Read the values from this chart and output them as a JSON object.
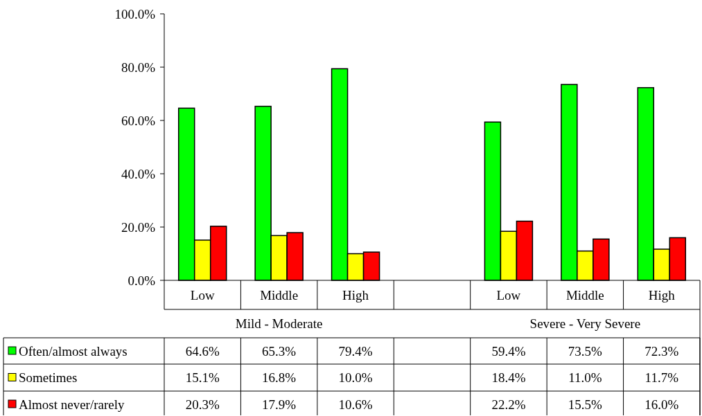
{
  "chart_data": {
    "type": "bar",
    "categories": [
      "Low",
      "Middle",
      "High",
      null,
      "Low",
      "Middle",
      "High"
    ],
    "annotations": [
      "Mild - Moderate",
      "Severe - Very Severe"
    ],
    "series": [
      {
        "name": "Often/almost always",
        "color": "#00ff00",
        "values": [
          64.6,
          65.3,
          79.4,
          null,
          59.4,
          73.5,
          72.3
        ],
        "value_labels": [
          "64.6%",
          "65.3%",
          "79.4%",
          null,
          "59.4%",
          "73.5%",
          "72.3%"
        ]
      },
      {
        "name": "Sometimes",
        "color": "#ffff00",
        "values": [
          15.1,
          16.8,
          10.0,
          null,
          18.4,
          11.0,
          11.7
        ],
        "value_labels": [
          "15.1%",
          "16.8%",
          "10.0%",
          null,
          "18.4%",
          "11.0%",
          "11.7%"
        ]
      },
      {
        "name": "Almost never/rarely",
        "color": "#ff0000",
        "values": [
          20.3,
          17.9,
          10.6,
          null,
          22.2,
          15.5,
          16.0
        ],
        "value_labels": [
          "20.3%",
          "17.9%",
          "10.6%",
          null,
          "22.2%",
          "15.5%",
          "16.0%"
        ]
      }
    ],
    "ylim": [
      0,
      100
    ],
    "yticks": [
      {
        "value": 0,
        "label": "0.0%"
      },
      {
        "value": 20,
        "label": "20.0%"
      },
      {
        "value": 40,
        "label": "40.0%"
      },
      {
        "value": 60,
        "label": "60.0%"
      },
      {
        "value": 80,
        "label": "80.0%"
      },
      {
        "value": 100,
        "label": "100.0%"
      }
    ],
    "grid": false,
    "legend": "left"
  }
}
